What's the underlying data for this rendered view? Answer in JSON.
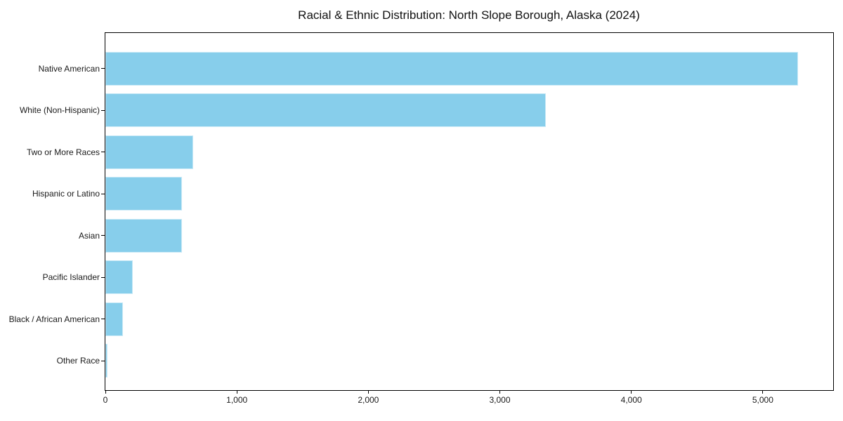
{
  "title": "Racial & Ethnic Distribution: North Slope Borough, Alaska (2024)",
  "chart_data": {
    "type": "bar",
    "orientation": "horizontal",
    "title": "Racial & Ethnic Distribution: North Slope Borough, Alaska (2024)",
    "categories": [
      "Native American",
      "White (Non-Hispanic)",
      "Two or More Races",
      "Hispanic or Latino",
      "Asian",
      "Pacific Islander",
      "Black / African American",
      "Other Race"
    ],
    "values": [
      5270,
      3350,
      670,
      585,
      580,
      210,
      135,
      15
    ],
    "bar_color": "#87CEEB",
    "xlabel": "",
    "ylabel": "",
    "xlim": [
      0,
      5535
    ],
    "x_ticks": [
      0,
      1000,
      2000,
      3000,
      4000,
      5000
    ],
    "x_tick_labels": [
      "0",
      "1,000",
      "2,000",
      "3,000",
      "4,000",
      "5,000"
    ],
    "grid": false,
    "legend": null,
    "background_color": "#ffffff",
    "text_color": "#1a1a1a"
  }
}
